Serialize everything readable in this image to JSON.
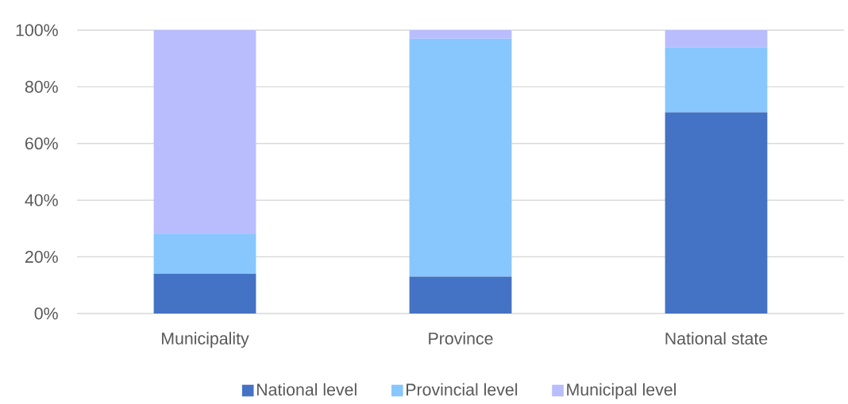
{
  "chart_data": {
    "type": "bar",
    "stacked": true,
    "categories": [
      "Municipality",
      "Province",
      "National state"
    ],
    "series": [
      {
        "name": "National level",
        "color": "#4472c4",
        "values": [
          14,
          13,
          71
        ]
      },
      {
        "name": "Provincial level",
        "color": "#88c6fe",
        "values": [
          14,
          84,
          23
        ]
      },
      {
        "name": "Municipal level",
        "color": "#b9bdfe",
        "values": [
          72,
          3,
          6
        ]
      }
    ],
    "ylim": [
      0,
      100
    ],
    "yticks": [
      {
        "value": 0,
        "label": "0%"
      },
      {
        "value": 20,
        "label": "20%"
      },
      {
        "value": 40,
        "label": "40%"
      },
      {
        "value": 60,
        "label": "60%"
      },
      {
        "value": 80,
        "label": "80%"
      },
      {
        "value": 100,
        "label": "100%"
      }
    ],
    "grid": "y",
    "legend": "bottom"
  }
}
